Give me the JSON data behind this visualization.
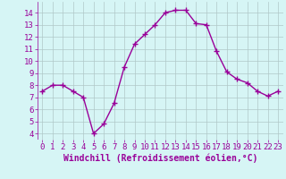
{
  "x": [
    0,
    1,
    2,
    3,
    4,
    5,
    6,
    7,
    8,
    9,
    10,
    11,
    12,
    13,
    14,
    15,
    16,
    17,
    18,
    19,
    20,
    21,
    22,
    23
  ],
  "y": [
    7.5,
    8.0,
    8.0,
    7.5,
    7.0,
    4.0,
    4.8,
    6.5,
    9.5,
    11.4,
    12.2,
    13.0,
    14.0,
    14.2,
    14.2,
    13.1,
    13.0,
    10.8,
    9.1,
    8.5,
    8.2,
    7.5,
    7.1,
    7.5
  ],
  "line_color": "#990099",
  "marker": "+",
  "marker_size": 4,
  "bg_color": "#d6f5f5",
  "grid_color": "#b0c8c8",
  "xlabel": "Windchill (Refroidissement éolien,°C)",
  "xlabel_color": "#990099",
  "tick_color": "#990099",
  "ylim": [
    3.5,
    14.9
  ],
  "xlim": [
    -0.5,
    23.5
  ],
  "yticks": [
    4,
    5,
    6,
    7,
    8,
    9,
    10,
    11,
    12,
    13,
    14
  ],
  "xticks": [
    0,
    1,
    2,
    3,
    4,
    5,
    6,
    7,
    8,
    9,
    10,
    11,
    12,
    13,
    14,
    15,
    16,
    17,
    18,
    19,
    20,
    21,
    22,
    23
  ],
  "font_size": 6.5,
  "xlabel_fontsize": 7.0,
  "linewidth": 1.0
}
